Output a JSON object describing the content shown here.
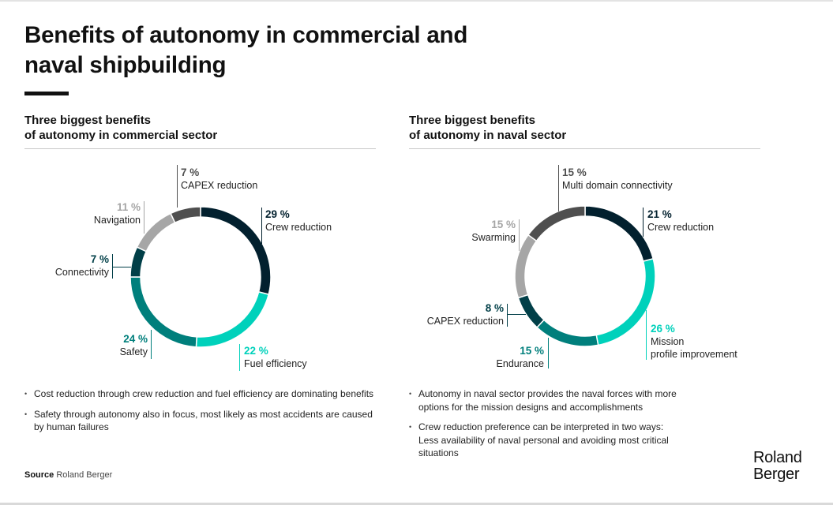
{
  "page": {
    "title_line1": "Benefits of autonomy in commercial and",
    "title_line2": "naval shipbuilding",
    "source_label": "Source",
    "source_value": "Roland Berger",
    "logo_line1": "Roland",
    "logo_line2": "Berger"
  },
  "colors": {
    "navy": "#02202e",
    "turquoise": "#00d1bb",
    "teal": "#007f7c",
    "dark_teal": "#013f48",
    "light_gray": "#a6a6a6",
    "dark_gray": "#4f4f4f",
    "label_gray": "#9e9e9e"
  },
  "chart_data": [
    {
      "type": "pie",
      "variant": "donut",
      "title_line1": "Three biggest benefits",
      "title_line2": "of autonomy in commercial sector",
      "unit": "%",
      "start": "12 o'clock, clockwise",
      "slices": [
        {
          "label": "Crew reduction",
          "value": 29,
          "pct_text": "29 %",
          "color": "#02202e"
        },
        {
          "label": "Fuel efficiency",
          "value": 22,
          "pct_text": "22 %",
          "color": "#00d1bb"
        },
        {
          "label": "Safety",
          "value": 24,
          "pct_text": "24 %",
          "color": "#007f7c"
        },
        {
          "label": "Connectivity",
          "value": 7,
          "pct_text": "7 %",
          "color": "#013f48"
        },
        {
          "label": "Navigation",
          "value": 11,
          "pct_text": "11 %",
          "color": "#a6a6a6"
        },
        {
          "label": "CAPEX reduction",
          "value": 7,
          "pct_text": "7 %",
          "color": "#4f4f4f"
        }
      ],
      "bullets": [
        "Cost reduction through crew reduction and fuel efficiency are dominating benefits",
        "Safety through autonomy also in focus, most likely as most accidents are caused by human failures"
      ]
    },
    {
      "type": "pie",
      "variant": "donut",
      "title_line1": "Three biggest benefits",
      "title_line2": "of autonomy in naval sector",
      "unit": "%",
      "start": "12 o'clock, clockwise",
      "slices": [
        {
          "label": "Crew reduction",
          "value": 21,
          "pct_text": "21 %",
          "color": "#02202e"
        },
        {
          "label": "Mission profile improvement",
          "label_line1": "Mission",
          "label_line2": "profile improvement",
          "value": 26,
          "pct_text": "26 %",
          "color": "#00d1bb"
        },
        {
          "label": "Endurance",
          "value": 15,
          "pct_text": "15 %",
          "color": "#007f7c"
        },
        {
          "label": "CAPEX reduction",
          "value": 8,
          "pct_text": "8 %",
          "color": "#013f48"
        },
        {
          "label": "Swarming",
          "value": 15,
          "pct_text": "15 %",
          "color": "#a6a6a6"
        },
        {
          "label": "Multi domain connectivity",
          "value": 15,
          "pct_text": "15 %",
          "color": "#4f4f4f"
        }
      ],
      "bullets": [
        "Autonomy in naval sector provides the naval forces with more options for the mission designs and accomplishments",
        "Crew reduction preference can be interpreted in two ways: Less availability of naval personal and avoiding most critical situations"
      ]
    }
  ]
}
